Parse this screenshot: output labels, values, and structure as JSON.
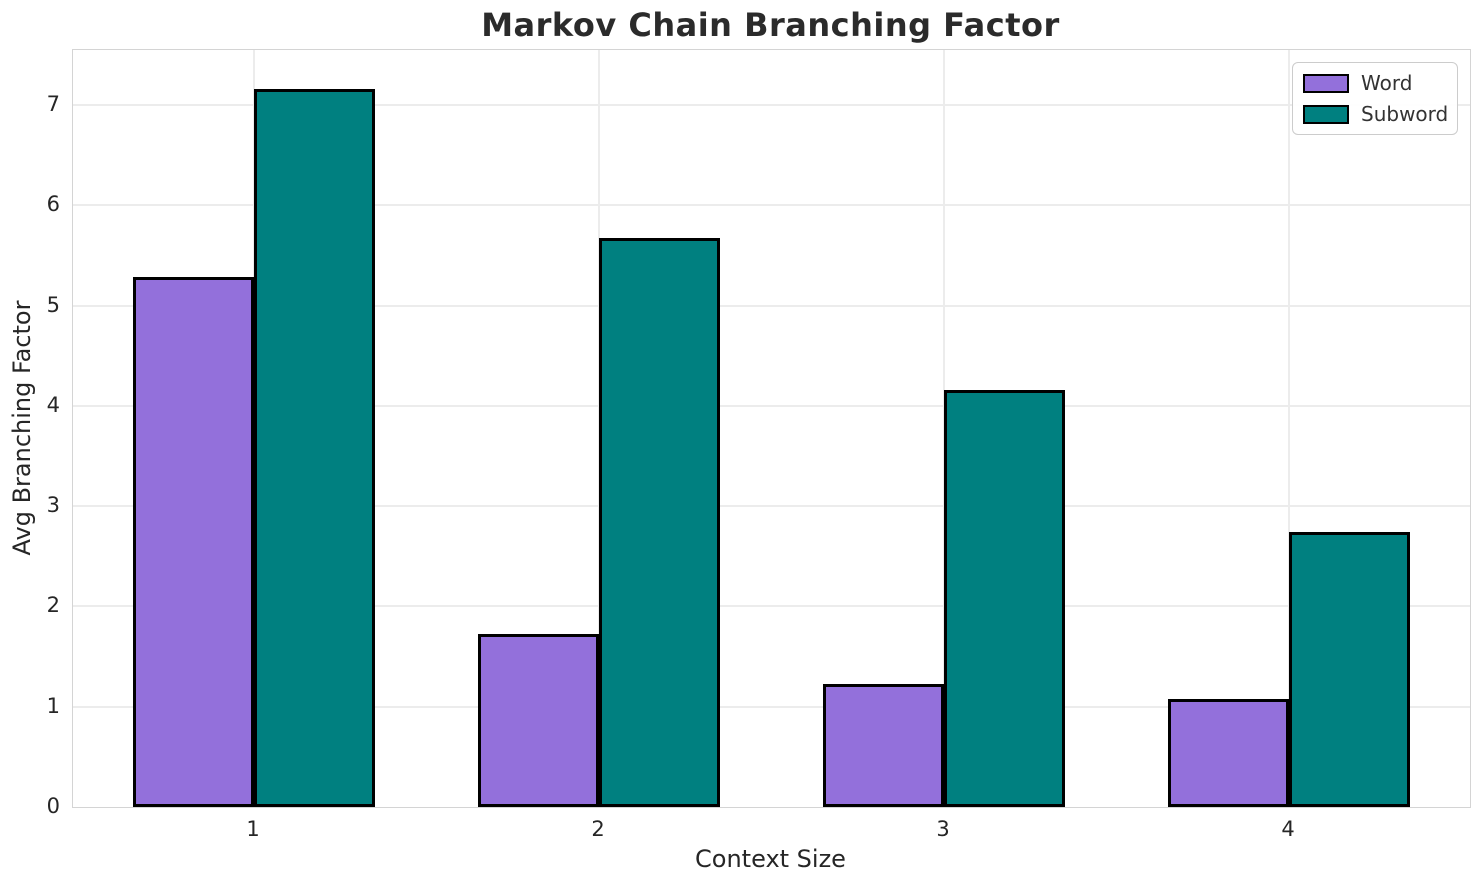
{
  "chart_data": {
    "type": "bar",
    "title": "Markov Chain Branching Factor",
    "xlabel": "Context Size",
    "ylabel": "Avg Branching Factor",
    "categories": [
      "1",
      "2",
      "3",
      "4"
    ],
    "series": [
      {
        "name": "Word",
        "color": "#9370DB",
        "values": [
          5.29,
          1.73,
          1.23,
          1.08
        ]
      },
      {
        "name": "Subword",
        "color": "#008080",
        "values": [
          7.16,
          5.67,
          4.16,
          2.74
        ]
      }
    ],
    "ylim": [
      0,
      7.55
    ],
    "yticks": [
      0,
      1,
      2,
      3,
      4,
      5,
      6,
      7
    ],
    "grid": "both",
    "legend_position": "upper-right",
    "bar_edge_color": "#000000",
    "colors": {
      "grid": "#ececec",
      "spine": "#d4d4d4",
      "text": "#262626"
    }
  }
}
